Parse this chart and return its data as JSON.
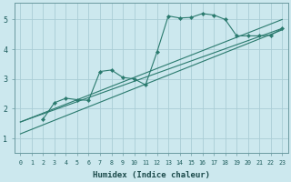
{
  "xlabel": "Humidex (Indice chaleur)",
  "bg_color": "#cce8ee",
  "grid_color": "#aacdd5",
  "line_color": "#2a7a6e",
  "xlim": [
    -0.5,
    23.5
  ],
  "ylim": [
    0.5,
    5.55
  ],
  "yticks": [
    1,
    2,
    3,
    4,
    5
  ],
  "xticks": [
    0,
    1,
    2,
    3,
    4,
    5,
    6,
    7,
    8,
    9,
    10,
    11,
    12,
    13,
    14,
    15,
    16,
    17,
    18,
    19,
    20,
    21,
    22,
    23
  ],
  "series1_x": [
    2,
    3,
    4,
    5,
    6,
    7,
    8,
    9,
    10,
    11,
    12,
    13,
    14,
    15,
    16,
    17,
    18,
    19,
    20,
    21,
    22,
    23
  ],
  "series1_y": [
    1.65,
    2.2,
    2.35,
    2.3,
    2.28,
    3.25,
    3.3,
    3.05,
    3.0,
    2.8,
    3.9,
    5.12,
    5.05,
    5.07,
    5.2,
    5.15,
    5.0,
    4.45,
    4.45,
    4.45,
    4.47,
    4.7
  ],
  "line2_x0": 0,
  "line2_x1": 23,
  "line2_y0": 1.55,
  "line2_y1": 5.0,
  "line3_x0": 0,
  "line3_x1": 23,
  "line3_y0": 1.55,
  "line3_y1": 4.7,
  "line4_x0": 0,
  "line4_x1": 23,
  "line4_y0": 1.15,
  "line4_y1": 4.65
}
